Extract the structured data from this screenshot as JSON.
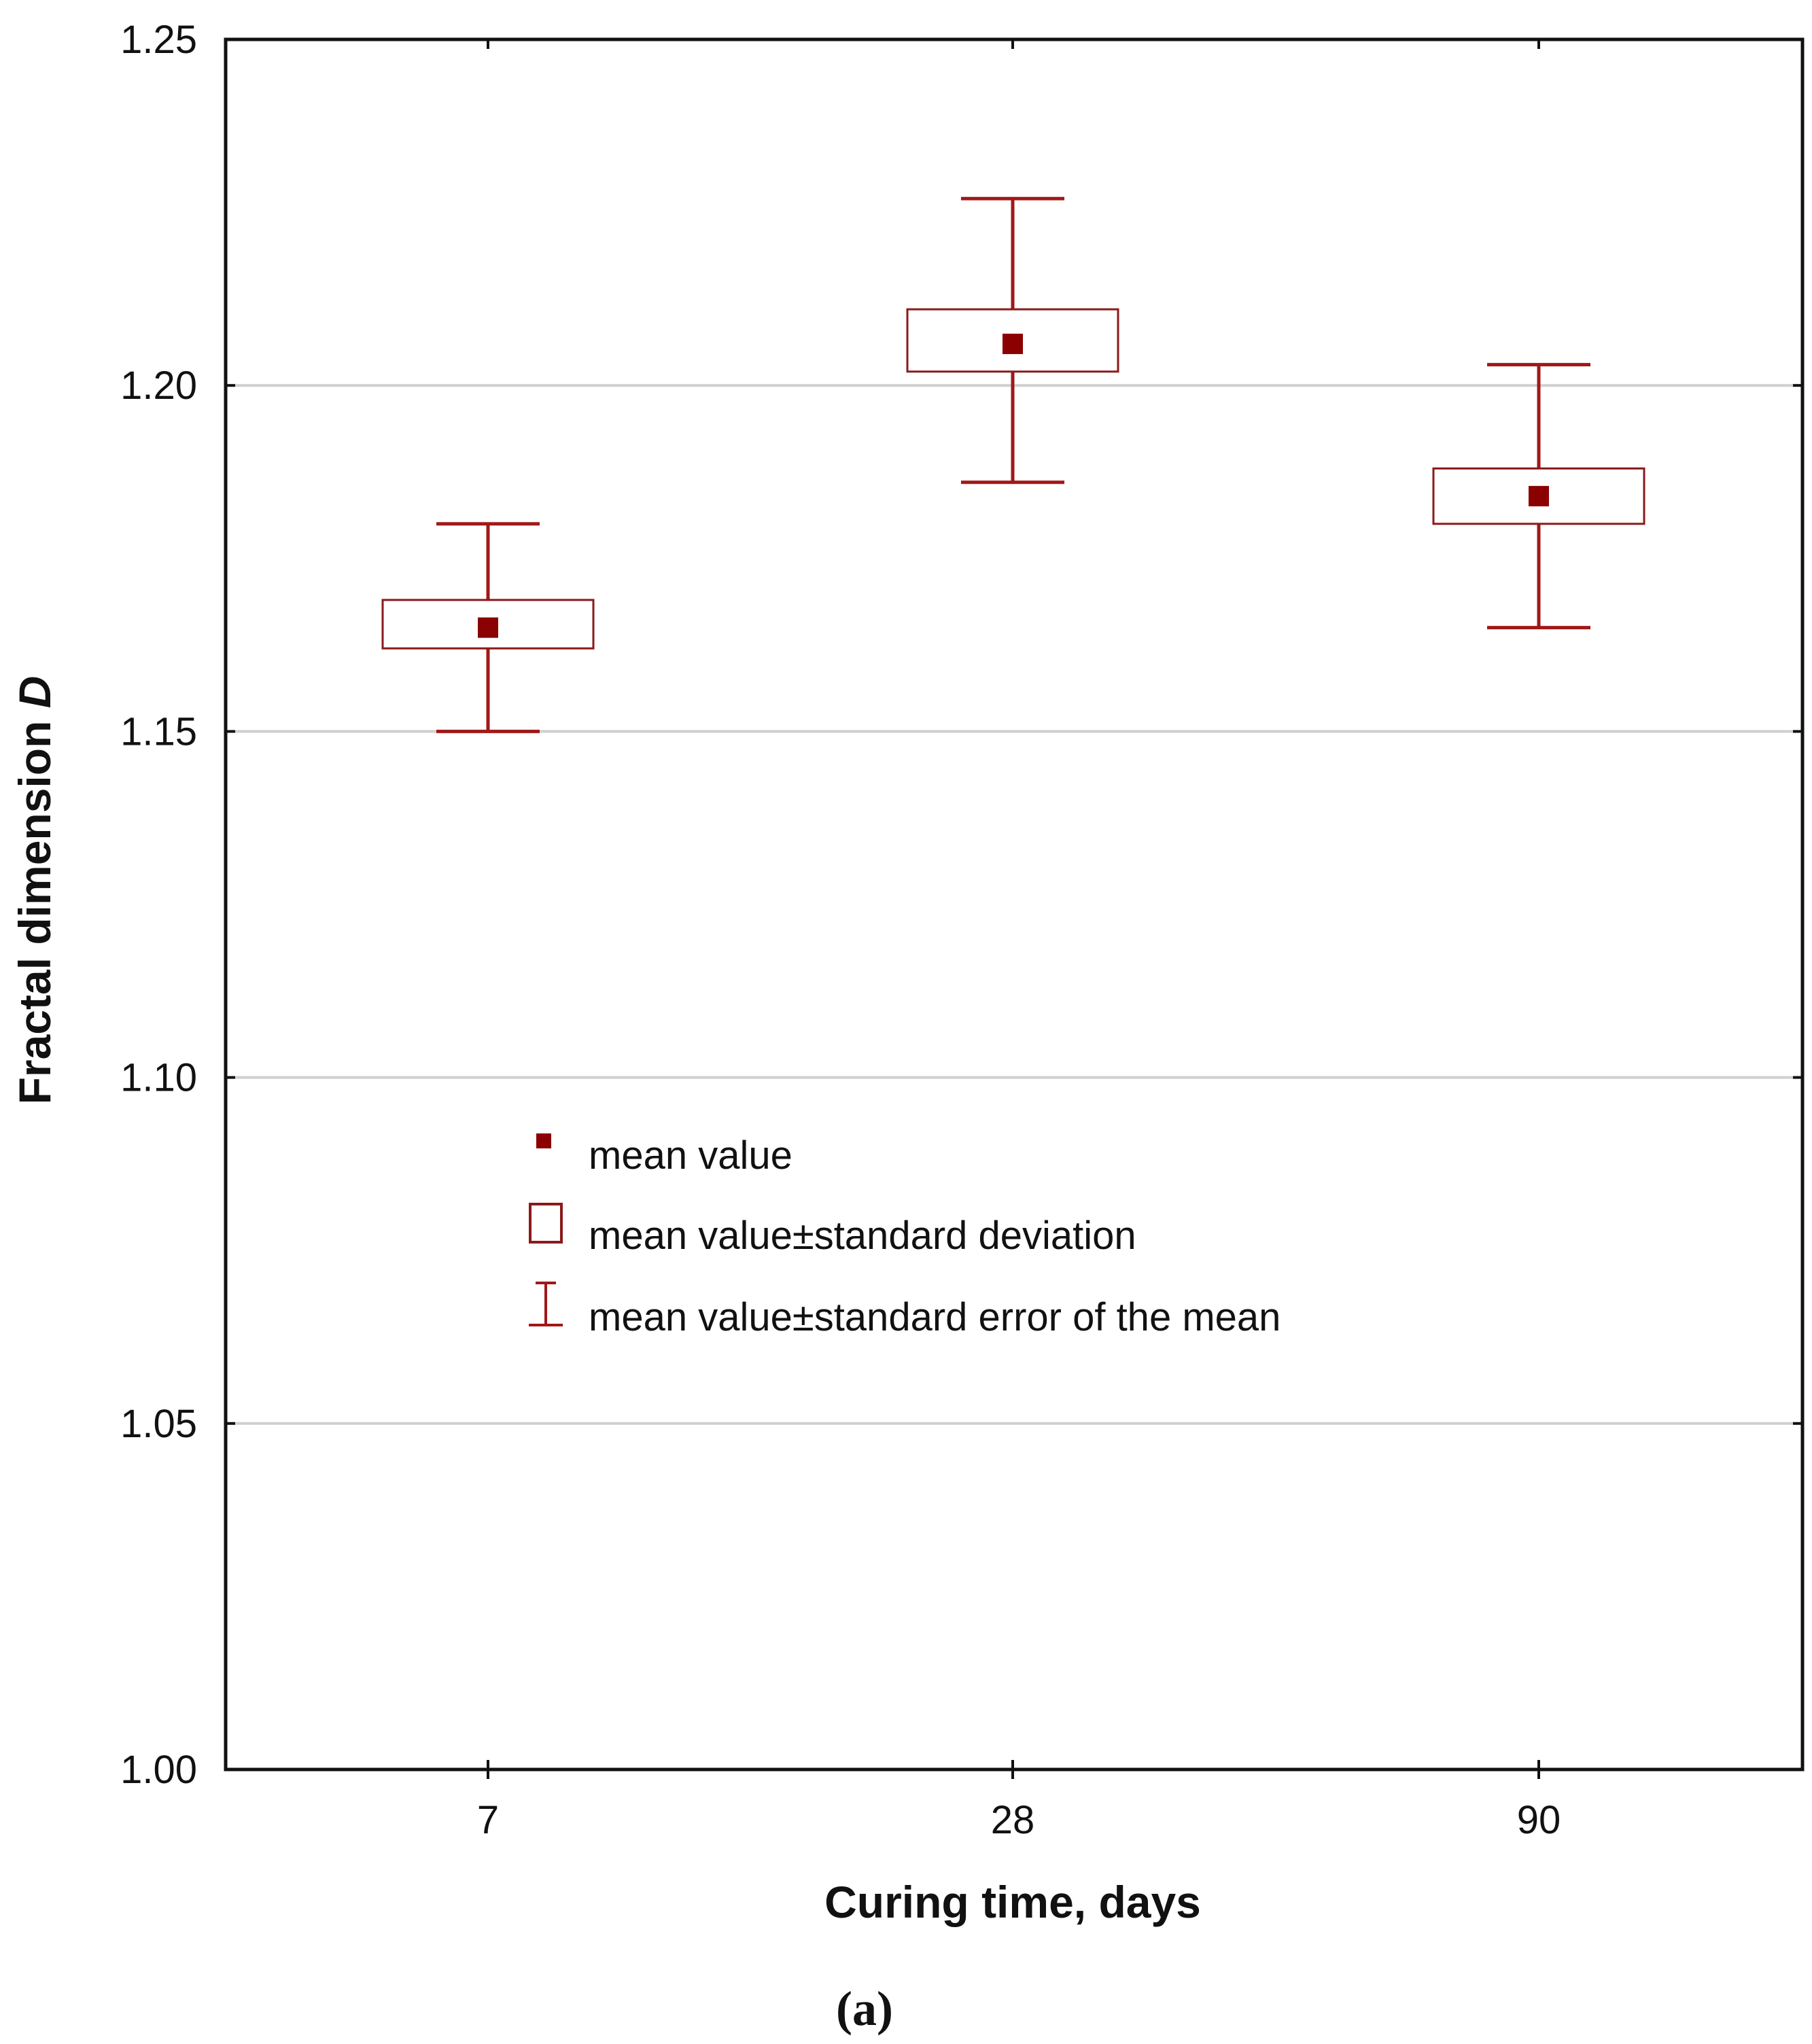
{
  "chart_data": {
    "type": "box",
    "xlabel": "Curing time, days",
    "ylabel": "Fractal dimension",
    "ylabel_italic": "D",
    "ylim": [
      1.0,
      1.25
    ],
    "yticks": [
      "1.00",
      "1.05",
      "1.10",
      "1.15",
      "1.20",
      "1.25"
    ],
    "ytick_values": [
      1.0,
      1.05,
      1.1,
      1.15,
      1.2,
      1.25
    ],
    "grid": true,
    "categories": [
      "7",
      "28",
      "90"
    ],
    "groups": [
      {
        "category": "7",
        "mean": 1.165,
        "sd_low": 1.162,
        "sd_high": 1.169,
        "se_low": 1.15,
        "se_high": 1.18
      },
      {
        "category": "28",
        "mean": 1.206,
        "sd_low": 1.202,
        "sd_high": 1.211,
        "se_low": 1.186,
        "se_high": 1.227
      },
      {
        "category": "90",
        "mean": 1.184,
        "sd_low": 1.18,
        "sd_high": 1.188,
        "se_low": 1.165,
        "se_high": 1.203
      }
    ],
    "legend": [
      {
        "symbol": "square",
        "label": "mean value"
      },
      {
        "symbol": "box",
        "label": "mean value±standard deviation"
      },
      {
        "symbol": "whisker",
        "label": "mean value±standard error of the mean"
      }
    ],
    "legend_position": "center-left",
    "caption": "(a)",
    "colors": {
      "marker": "#8b0000",
      "whisker": "#a01818",
      "box": "#8b1a1a",
      "grid": "#cfcfcf",
      "axis": "#111111"
    }
  }
}
